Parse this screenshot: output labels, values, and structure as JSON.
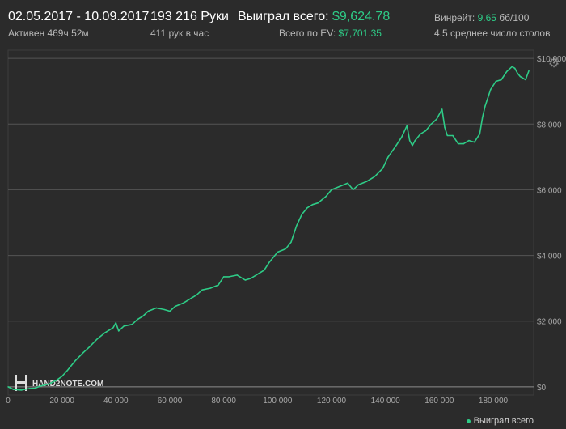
{
  "header": {
    "date_range": "02.05.2017 - 10.09.2017",
    "active_time": "Активен 469ч 52м",
    "hands": "193 216 Руки",
    "hands_per_hour": "411 рук в час",
    "won_total_label": "Выиграл всего:",
    "won_total_value": "$9,624.78",
    "ev_label": "Всего по EV:",
    "ev_value": "$7,701.35",
    "winrate_label": "Винрейт:",
    "winrate_value": "9.65",
    "winrate_unit": "бб/100",
    "avg_tables": "4.5 среднее число столов"
  },
  "watermark": "HAND2NOTE.COM",
  "icons": {
    "settings": "gear-icon",
    "logo": "hand2note-logo-icon"
  },
  "colors": {
    "accent": "#2ecc87",
    "background": "#2b2b2b",
    "grid": "#4a4a4a"
  },
  "chart_data": {
    "type": "line",
    "xlabel": "",
    "ylabel": "",
    "xlim": [
      0,
      195000
    ],
    "ylim": [
      -250,
      10250
    ],
    "x_ticks": [
      "0",
      "20 000",
      "40 000",
      "60 000",
      "80 000",
      "100 000",
      "120 000",
      "140 000",
      "160 000",
      "180 000"
    ],
    "x_tick_values": [
      0,
      20000,
      40000,
      60000,
      80000,
      100000,
      120000,
      140000,
      160000,
      180000
    ],
    "y_ticks": [
      "$0",
      "$2,000",
      "$4,000",
      "$6,000",
      "$8,000",
      "$10,000"
    ],
    "y_tick_values": [
      0,
      2000,
      4000,
      6000,
      8000,
      10000
    ],
    "grid": true,
    "legend": {
      "placement": "bottom-right",
      "entries": [
        "Выиграл всего"
      ]
    },
    "series": [
      {
        "name": "Выиграл всего",
        "color": "#2ecc87",
        "x": [
          0,
          2000,
          5000,
          8000,
          10000,
          12000,
          15000,
          18000,
          20000,
          22000,
          25000,
          28000,
          30000,
          33000,
          36000,
          39000,
          40000,
          41000,
          43000,
          46000,
          48000,
          50000,
          52000,
          55000,
          58000,
          60000,
          62000,
          65000,
          68000,
          70000,
          72000,
          75000,
          78000,
          80000,
          82000,
          85000,
          88000,
          90000,
          93000,
          95000,
          97000,
          100000,
          103000,
          105000,
          107000,
          109000,
          111000,
          113000,
          115000,
          118000,
          120000,
          123000,
          126000,
          128000,
          130000,
          133000,
          136000,
          139000,
          141000,
          144000,
          146000,
          148000,
          149000,
          150000,
          151000,
          153000,
          155000,
          157000,
          159000,
          161000,
          162000,
          163000,
          165000,
          167000,
          169000,
          171000,
          173000,
          175000,
          176000,
          177000,
          179000,
          181000,
          183000,
          185000,
          187000,
          188000,
          189000,
          190000,
          191000,
          192000,
          193216
        ],
        "values": [
          0,
          -80,
          -100,
          -50,
          -40,
          20,
          80,
          200,
          320,
          500,
          800,
          1050,
          1200,
          1450,
          1650,
          1800,
          1950,
          1700,
          1850,
          1900,
          2050,
          2150,
          2300,
          2400,
          2350,
          2300,
          2450,
          2550,
          2700,
          2800,
          2950,
          3000,
          3100,
          3350,
          3350,
          3400,
          3250,
          3300,
          3450,
          3550,
          3800,
          4100,
          4200,
          4400,
          4900,
          5250,
          5450,
          5550,
          5600,
          5800,
          6000,
          6100,
          6200,
          6000,
          6150,
          6250,
          6400,
          6650,
          7000,
          7350,
          7600,
          7950,
          7500,
          7350,
          7500,
          7700,
          7800,
          8000,
          8150,
          8450,
          7900,
          7650,
          7650,
          7400,
          7400,
          7500,
          7450,
          7700,
          8200,
          8550,
          9050,
          9300,
          9350,
          9600,
          9750,
          9700,
          9550,
          9450,
          9400,
          9350,
          9624.78
        ]
      }
    ]
  }
}
